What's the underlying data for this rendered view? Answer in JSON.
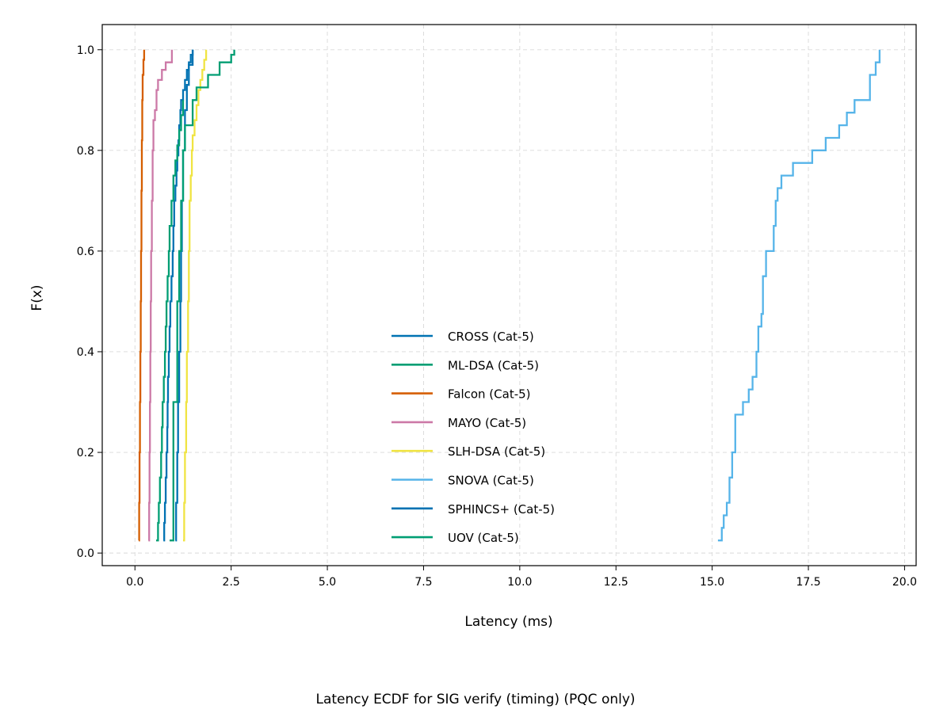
{
  "chart_data": {
    "type": "line",
    "xlabel": "Latency (ms)",
    "ylabel": "F(x)",
    "caption": "Latency ECDF for SIG verify (timing) (PQC only)",
    "xlim": [
      -0.85,
      20.3
    ],
    "ylim": [
      -0.025,
      1.05
    ],
    "xticks": [
      0.0,
      2.5,
      5.0,
      7.5,
      10.0,
      12.5,
      15.0,
      17.5,
      20.0
    ],
    "xtick_labels": [
      "0.0",
      "2.5",
      "5.0",
      "7.5",
      "10.0",
      "12.5",
      "15.0",
      "17.5",
      "20.0"
    ],
    "yticks": [
      0.0,
      0.2,
      0.4,
      0.6,
      0.8,
      1.0
    ],
    "ytick_labels": [
      "0.0",
      "0.2",
      "0.4",
      "0.6",
      "0.8",
      "1.0"
    ],
    "grid": true,
    "legend_position": "lower-center",
    "series": [
      {
        "name": "CROSS (Cat-5)",
        "color": "#0072b2",
        "x": [
          0.74,
          0.76,
          0.78,
          0.8,
          0.82,
          0.84,
          0.85,
          0.86,
          0.88,
          0.9,
          0.92,
          0.95,
          0.98,
          1.0,
          1.02,
          1.05,
          1.08,
          1.1,
          1.13,
          1.15,
          1.18,
          1.2,
          1.25,
          1.3,
          1.35,
          1.4,
          1.45,
          1.5
        ],
        "y": [
          0.025,
          0.06,
          0.1,
          0.15,
          0.2,
          0.25,
          0.3,
          0.35,
          0.4,
          0.45,
          0.5,
          0.55,
          0.6,
          0.65,
          0.7,
          0.73,
          0.76,
          0.79,
          0.82,
          0.85,
          0.88,
          0.9,
          0.92,
          0.94,
          0.96,
          0.975,
          0.99,
          1.0
        ]
      },
      {
        "name": "ML-DSA (Cat-5)",
        "color": "#009e73",
        "x": [
          0.55,
          0.6,
          0.62,
          0.65,
          0.68,
          0.7,
          0.72,
          0.75,
          0.78,
          0.8,
          0.82,
          0.85,
          0.88,
          0.9,
          0.95,
          1.0,
          1.05,
          1.1,
          1.15,
          1.2,
          1.25
        ],
        "y": [
          0.025,
          0.06,
          0.1,
          0.15,
          0.2,
          0.25,
          0.3,
          0.35,
          0.4,
          0.45,
          0.5,
          0.55,
          0.6,
          0.65,
          0.7,
          0.75,
          0.78,
          0.81,
          0.84,
          0.87,
          0.9
        ]
      },
      {
        "name": "Falcon (Cat-5)",
        "color": "#d55e00",
        "x": [
          0.1,
          0.11,
          0.12,
          0.13,
          0.14,
          0.15,
          0.16,
          0.17,
          0.18,
          0.19,
          0.2,
          0.22,
          0.24
        ],
        "y": [
          0.025,
          0.1,
          0.2,
          0.3,
          0.4,
          0.5,
          0.6,
          0.72,
          0.82,
          0.9,
          0.95,
          0.98,
          1.0
        ]
      },
      {
        "name": "MAYO (Cat-5)",
        "color": "#cc79a7",
        "x": [
          0.35,
          0.37,
          0.38,
          0.39,
          0.4,
          0.41,
          0.42,
          0.44,
          0.46,
          0.48,
          0.52,
          0.56,
          0.6,
          0.7,
          0.8,
          0.96
        ],
        "y": [
          0.025,
          0.1,
          0.2,
          0.3,
          0.4,
          0.5,
          0.6,
          0.7,
          0.8,
          0.86,
          0.88,
          0.92,
          0.94,
          0.96,
          0.975,
          1.0
        ]
      },
      {
        "name": "SLH-DSA (Cat-5)",
        "color": "#f0e442",
        "x": [
          1.25,
          1.28,
          1.3,
          1.33,
          1.35,
          1.38,
          1.4,
          1.42,
          1.45,
          1.48,
          1.5,
          1.55,
          1.6,
          1.65,
          1.7,
          1.75,
          1.8,
          1.85
        ],
        "y": [
          0.025,
          0.1,
          0.2,
          0.3,
          0.4,
          0.5,
          0.6,
          0.7,
          0.75,
          0.8,
          0.83,
          0.86,
          0.89,
          0.92,
          0.94,
          0.96,
          0.98,
          1.0
        ]
      },
      {
        "name": "SNOVA (Cat-5)",
        "color": "#56b4e9",
        "x": [
          15.15,
          15.25,
          15.3,
          15.38,
          15.45,
          15.52,
          15.6,
          15.8,
          15.95,
          16.05,
          16.15,
          16.2,
          16.28,
          16.32,
          16.4,
          16.45,
          16.6,
          16.65,
          16.7,
          16.8,
          16.9,
          17.1,
          17.6,
          17.95,
          18.3,
          18.5,
          18.7,
          18.9,
          19.1,
          19.25,
          19.35
        ],
        "y": [
          0.025,
          0.05,
          0.075,
          0.1,
          0.15,
          0.2,
          0.275,
          0.3,
          0.325,
          0.35,
          0.4,
          0.45,
          0.475,
          0.55,
          0.6,
          0.6,
          0.65,
          0.7,
          0.725,
          0.75,
          0.75,
          0.775,
          0.8,
          0.825,
          0.85,
          0.875,
          0.9,
          0.9,
          0.95,
          0.975,
          1.0
        ]
      },
      {
        "name": "SPHINCS+ (Cat-5)",
        "color": "#0072b2",
        "x": [
          1.05,
          1.07,
          1.1,
          1.12,
          1.15,
          1.18,
          1.2,
          1.22,
          1.25,
          1.3,
          1.35,
          1.4,
          1.5
        ],
        "y": [
          0.025,
          0.1,
          0.2,
          0.3,
          0.4,
          0.5,
          0.6,
          0.7,
          0.8,
          0.88,
          0.93,
          0.97,
          1.0
        ]
      },
      {
        "name": "UOV (Cat-5)",
        "color": "#009e73",
        "x": [
          0.9,
          1.0,
          1.1,
          1.15,
          1.2,
          1.25,
          1.3,
          1.5,
          1.6,
          1.9,
          2.2,
          2.5,
          2.58
        ],
        "y": [
          0.025,
          0.3,
          0.5,
          0.6,
          0.7,
          0.8,
          0.85,
          0.9,
          0.925,
          0.95,
          0.975,
          0.99,
          1.0
        ]
      }
    ]
  }
}
